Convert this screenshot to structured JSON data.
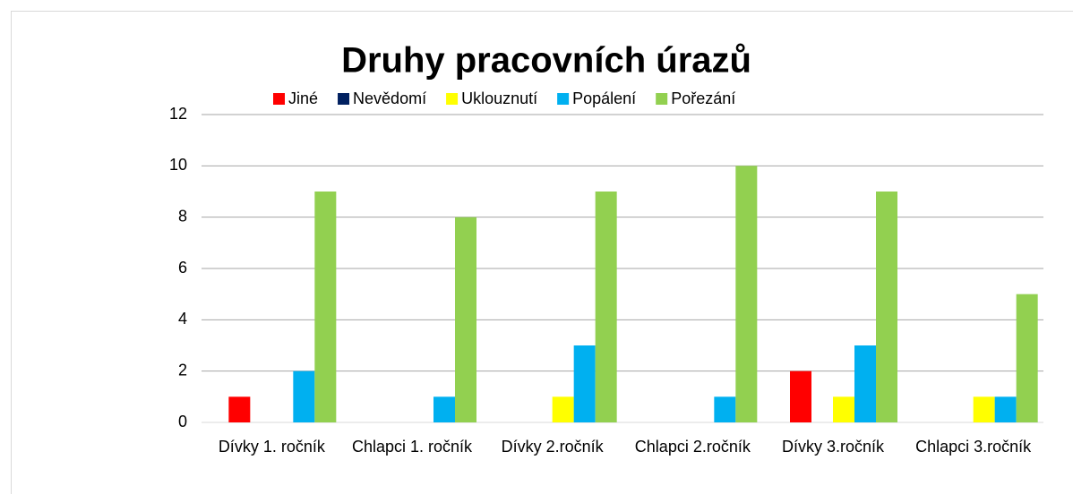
{
  "chart_data": {
    "type": "bar",
    "title": "Druhy pracovních úrazů",
    "categories": [
      "Dívky 1. ročník",
      "Chlapci 1. ročník",
      "Dívky 2.ročník",
      "Chlapci 2.ročník",
      "Dívky 3.ročník",
      "Chlapci 3.ročník"
    ],
    "series": [
      {
        "name": "Jiné",
        "color": "#ff0000",
        "values": [
          1,
          0,
          0,
          0,
          2,
          0
        ]
      },
      {
        "name": "Nevědomí",
        "color": "#002060",
        "values": [
          0,
          0,
          0,
          0,
          0,
          0
        ]
      },
      {
        "name": "Uklouznutí",
        "color": "#ffff00",
        "values": [
          0,
          0,
          1,
          0,
          1,
          1
        ]
      },
      {
        "name": "Popálení",
        "color": "#00b0f0",
        "values": [
          2,
          1,
          3,
          1,
          3,
          1
        ]
      },
      {
        "name": "Pořezání",
        "color": "#92d050",
        "values": [
          9,
          8,
          9,
          10,
          9,
          5
        ]
      }
    ],
    "ylim": [
      0,
      12
    ],
    "yticks": [
      0,
      2,
      4,
      6,
      8,
      10,
      12
    ],
    "grid": true,
    "legend": "top"
  }
}
